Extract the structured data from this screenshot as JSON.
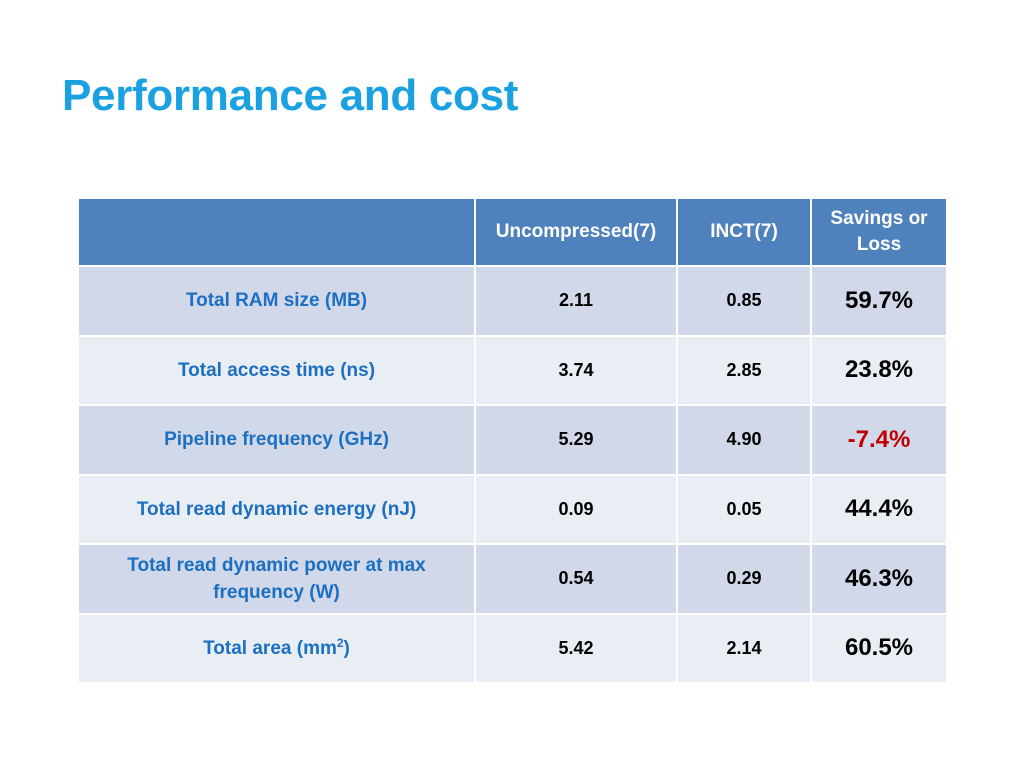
{
  "slide": {
    "title": "Performance and cost"
  },
  "colors": {
    "title": "#1aa1e1",
    "header_bg": "#4f81bd",
    "row_odd": "#d0d8e9",
    "row_even": "#e9edf4",
    "label_text": "#1d6fc1",
    "loss": "#c00000"
  },
  "table": {
    "headers": {
      "uncompressed": "Uncompressed(7)",
      "inct": "INCT(7)",
      "savings": "Savings or Loss"
    },
    "rows": [
      {
        "label": "Total RAM size (MB)",
        "uncompressed": "2.11",
        "inct": "0.85",
        "savings": "59.7%",
        "loss": false
      },
      {
        "label": "Total access time (ns)",
        "uncompressed": "3.74",
        "inct": "2.85",
        "savings": "23.8%",
        "loss": false
      },
      {
        "label": "Pipeline frequency (GHz)",
        "uncompressed": "5.29",
        "inct": "4.90",
        "savings": "-7.4%",
        "loss": true
      },
      {
        "label": "Total read dynamic energy (nJ)",
        "uncompressed": "0.09",
        "inct": "0.05",
        "savings": "44.4%",
        "loss": false
      },
      {
        "label": "Total read dynamic power at max frequency (W)",
        "uncompressed": "0.54",
        "inct": "0.29",
        "savings": "46.3%",
        "loss": false
      },
      {
        "label": "Total area (mm",
        "label_sup": "2",
        "label_suffix": ")",
        "uncompressed": "5.42",
        "inct": "2.14",
        "savings": "60.5%",
        "loss": false
      }
    ]
  }
}
